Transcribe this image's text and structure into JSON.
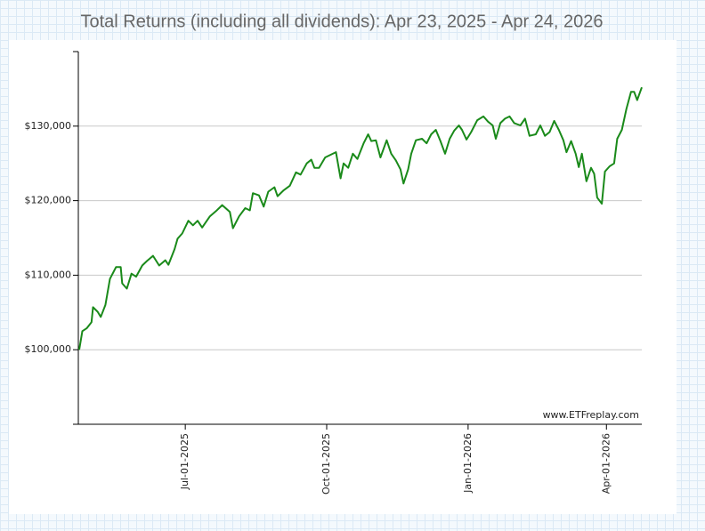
{
  "chart_data": {
    "type": "line",
    "title": "Total Returns (including all dividends): Apr 23, 2025 - Apr 24, 2026",
    "annotation": "www.ETFreplay.com",
    "xlim": [
      "2025-04-23",
      "2026-04-24"
    ],
    "xticks": [
      {
        "value": "2025-07-01",
        "label": "Jul-01-2025"
      },
      {
        "value": "2025-10-01",
        "label": "Oct-01-2025"
      },
      {
        "value": "2026-01-01",
        "label": "Jan-01-2026"
      },
      {
        "value": "2026-04-01",
        "label": "Apr-01-2026"
      }
    ],
    "ylim": [
      90000,
      140000
    ],
    "yticks": [
      {
        "value": 100000,
        "label": "$100,000"
      },
      {
        "value": 110000,
        "label": "$110,000"
      },
      {
        "value": 120000,
        "label": "$120,000"
      },
      {
        "value": 130000,
        "label": "$130,000"
      }
    ],
    "grid": true,
    "x": [
      "2025-04-23",
      "2025-04-25",
      "2025-04-28",
      "2025-05-01",
      "2025-05-02",
      "2025-05-05",
      "2025-05-07",
      "2025-05-10",
      "2025-05-13",
      "2025-05-17",
      "2025-05-20",
      "2025-05-21",
      "2025-05-24",
      "2025-05-27",
      "2025-05-30",
      "2025-06-03",
      "2025-06-06",
      "2025-06-10",
      "2025-06-14",
      "2025-06-18",
      "2025-06-20",
      "2025-06-24",
      "2025-06-26",
      "2025-06-29",
      "2025-07-03",
      "2025-07-06",
      "2025-07-09",
      "2025-07-12",
      "2025-07-17",
      "2025-07-21",
      "2025-07-25",
      "2025-07-30",
      "2025-08-01",
      "2025-08-05",
      "2025-08-09",
      "2025-08-12",
      "2025-08-14",
      "2025-08-18",
      "2025-08-21",
      "2025-08-24",
      "2025-08-28",
      "2025-08-30",
      "2025-09-03",
      "2025-09-07",
      "2025-09-11",
      "2025-09-14",
      "2025-09-18",
      "2025-09-21",
      "2025-09-23",
      "2025-09-26",
      "2025-09-30",
      "2025-10-04",
      "2025-10-07",
      "2025-10-10",
      "2025-10-12",
      "2025-10-15",
      "2025-10-18",
      "2025-10-21",
      "2025-10-25",
      "2025-10-28",
      "2025-10-30",
      "2025-11-02",
      "2025-11-05",
      "2025-11-09",
      "2025-11-12",
      "2025-11-15",
      "2025-11-18",
      "2025-11-20",
      "2025-11-23",
      "2025-11-25",
      "2025-11-28",
      "2025-12-02",
      "2025-12-05",
      "2025-12-08",
      "2025-12-11",
      "2025-12-14",
      "2025-12-17",
      "2025-12-20",
      "2025-12-23",
      "2025-12-26",
      "2025-12-28",
      "2025-12-31",
      "2026-01-03",
      "2026-01-07",
      "2026-01-11",
      "2026-01-14",
      "2026-01-17",
      "2026-01-19",
      "2026-01-22",
      "2026-01-25",
      "2026-01-28",
      "2026-01-31",
      "2026-02-04",
      "2026-02-07",
      "2026-02-10",
      "2026-02-14",
      "2026-02-17",
      "2026-02-20",
      "2026-02-23",
      "2026-02-26",
      "2026-03-01",
      "2026-03-04",
      "2026-03-06",
      "2026-03-09",
      "2026-03-12",
      "2026-03-14",
      "2026-03-16",
      "2026-03-19",
      "2026-03-22",
      "2026-03-24",
      "2026-03-26",
      "2026-03-29",
      "2026-03-31",
      "2026-04-03",
      "2026-04-06",
      "2026-04-08",
      "2026-04-11",
      "2026-04-14",
      "2026-04-17",
      "2026-04-19",
      "2026-04-21",
      "2026-04-24"
    ],
    "series": [
      {
        "color": "#1a8a1a",
        "values": [
          100000,
          102500,
          102900,
          103700,
          105700,
          105100,
          104400,
          106000,
          109500,
          111100,
          111100,
          108900,
          108200,
          110200,
          109800,
          111300,
          111900,
          112600,
          111300,
          112000,
          111400,
          113500,
          114900,
          115600,
          117300,
          116700,
          117300,
          116400,
          117900,
          118600,
          119400,
          118500,
          116300,
          117900,
          119000,
          118700,
          121000,
          120700,
          119200,
          121200,
          121800,
          120600,
          121400,
          122000,
          123800,
          123500,
          125000,
          125500,
          124400,
          124400,
          125800,
          126200,
          126500,
          123000,
          125000,
          124400,
          126300,
          125600,
          127700,
          128900,
          128000,
          128100,
          125800,
          128100,
          126300,
          125400,
          124200,
          122300,
          124200,
          126300,
          128100,
          128300,
          127700,
          128900,
          129500,
          128000,
          126300,
          128300,
          129400,
          130100,
          129500,
          128200,
          129200,
          130800,
          131300,
          130600,
          130100,
          128300,
          130400,
          131000,
          131300,
          130400,
          130100,
          131000,
          128700,
          128900,
          130100,
          128700,
          129200,
          130700,
          129500,
          128100,
          126500,
          128000,
          126300,
          124500,
          126300,
          122600,
          124400,
          123600,
          120400,
          119600,
          123900,
          124600,
          125000,
          128300,
          129500,
          132300,
          134600,
          134600,
          133500,
          135200
        ]
      }
    ]
  }
}
